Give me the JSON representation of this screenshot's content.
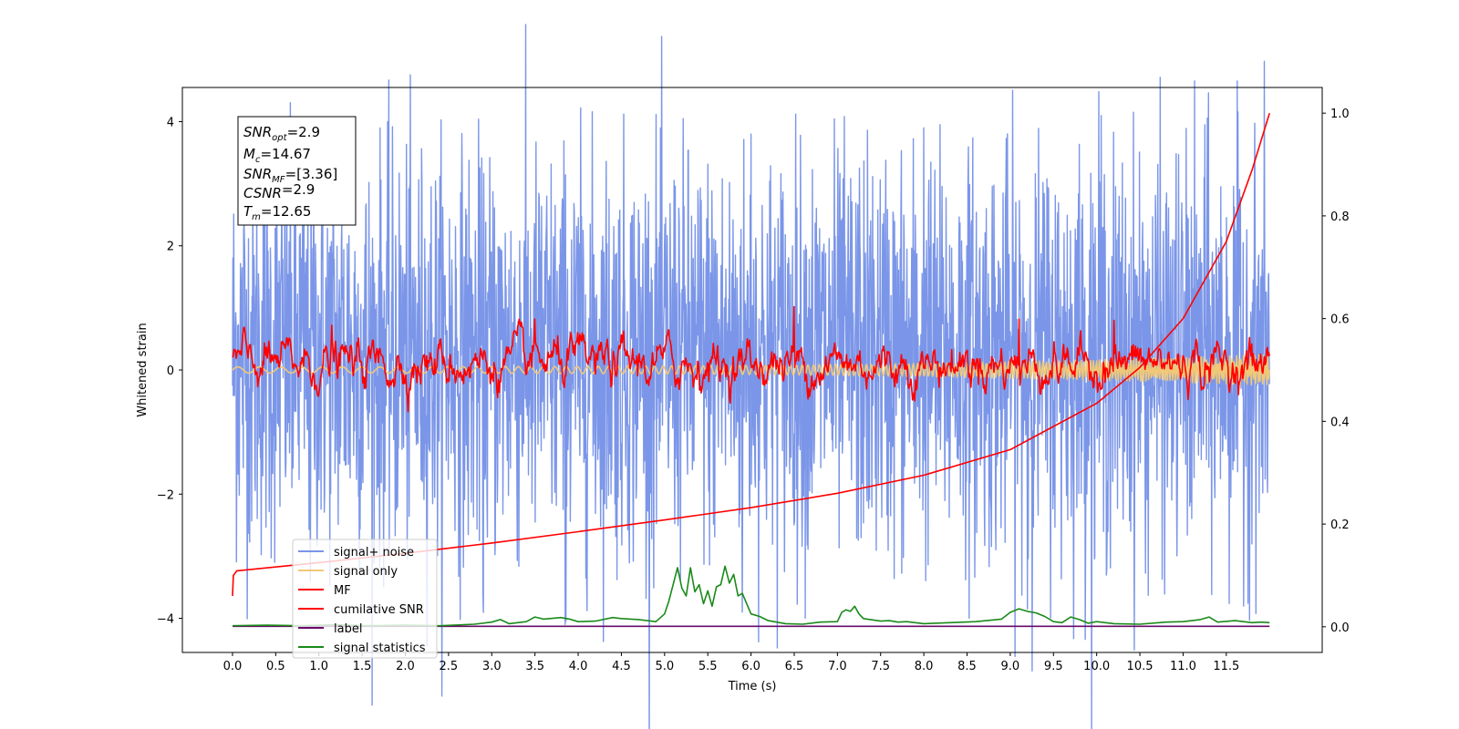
{
  "chart_data": {
    "type": "line",
    "title": "",
    "xlabel": "Time (s)",
    "ylabel": "Whitened strain",
    "xlim": [
      -0.58,
      12.61
    ],
    "ylim": [
      -4.55,
      4.55
    ],
    "y2lim": [
      -0.05,
      1.05
    ],
    "xticks": [
      "0.0",
      "0.5",
      "1.0",
      "1.5",
      "2.0",
      "2.5",
      "3.0",
      "3.5",
      "4.0",
      "4.5",
      "5.0",
      "5.5",
      "6.0",
      "6.5",
      "7.0",
      "7.5",
      "8.0",
      "8.5",
      "9.0",
      "9.5",
      "10.0",
      "10.5",
      "11.0",
      "11.5"
    ],
    "yticks": [
      "−4",
      "−2",
      "0",
      "2",
      "4"
    ],
    "y2ticks": [
      "0.0",
      "0.2",
      "0.4",
      "0.6",
      "0.8",
      "1.0"
    ],
    "grid": false,
    "legend_position": "lower-left",
    "annotation": {
      "lines": [
        {
          "sym": "SNR",
          "sub": "opt",
          "value": "=2.9"
        },
        {
          "sym": "M",
          "sub": "c",
          "value": "=14.67"
        },
        {
          "sym": "SNR",
          "sub": "MF",
          "value": "=[3.36]"
        },
        {
          "sym": "CSNR",
          "sub": "",
          "value": "=2.9"
        },
        {
          "sym": "T",
          "sub": "m",
          "value": "=12.65"
        }
      ]
    },
    "series": [
      {
        "name": "signal+ noise",
        "axis": "left",
        "color": "#7b96e8",
        "kind": "noise",
        "envelope": [
          -2.7,
          3.2
        ],
        "extremes": [
          [
            0.9,
            -3.4
          ],
          [
            2.9,
            -3.6
          ],
          [
            3.85,
            -4.1
          ],
          [
            5.9,
            -3.9
          ],
          [
            9.2,
            -3.85
          ],
          [
            10.05,
            4.1
          ],
          [
            11.25,
            3.95
          ],
          [
            8.0,
            3.9
          ],
          [
            6.0,
            3.8
          ]
        ]
      },
      {
        "name": "signal only",
        "axis": "left",
        "color": "#f0c878",
        "kind": "chirp",
        "amplitude_start": 0.05,
        "amplitude_end": 0.25
      },
      {
        "name": "MF",
        "axis": "left",
        "color": "#ff0000",
        "kind": "noise",
        "envelope": [
          -0.5,
          0.7
        ],
        "extremes": [
          [
            1.15,
            0.72
          ],
          [
            3.5,
            0.82
          ],
          [
            6.5,
            1.02
          ],
          [
            9.1,
            0.82
          ],
          [
            10.2,
            0.8
          ]
        ]
      },
      {
        "name": "cumilative SNR",
        "axis": "right",
        "color": "#ff0000",
        "kind": "curve",
        "x": [
          0.0,
          0.01,
          0.05,
          1.0,
          2.0,
          3.0,
          4.0,
          5.0,
          6.0,
          7.0,
          8.0,
          9.0,
          10.0,
          10.5,
          11.0,
          11.5,
          11.8,
          12.0
        ],
        "y": [
          0.06,
          0.1,
          0.109,
          0.125,
          0.143,
          0.163,
          0.185,
          0.208,
          0.232,
          0.26,
          0.295,
          0.345,
          0.435,
          0.505,
          0.6,
          0.75,
          0.89,
          1.0
        ]
      },
      {
        "name": "label",
        "axis": "right",
        "color": "#6a0a6a",
        "kind": "curve",
        "x": [
          0.0,
          12.0
        ],
        "y": [
          0.001,
          0.001
        ]
      },
      {
        "name": "signal statistics",
        "axis": "right",
        "color": "#1a8a1a",
        "kind": "curve",
        "x": [
          0.0,
          0.4,
          0.8,
          1.2,
          1.6,
          2.0,
          2.4,
          2.8,
          3.0,
          3.1,
          3.2,
          3.4,
          3.5,
          3.6,
          3.8,
          3.9,
          4.0,
          4.2,
          4.4,
          4.5,
          4.7,
          4.9,
          5.0,
          5.05,
          5.15,
          5.2,
          5.25,
          5.3,
          5.35,
          5.4,
          5.45,
          5.5,
          5.55,
          5.6,
          5.65,
          5.7,
          5.75,
          5.8,
          5.85,
          5.9,
          6.0,
          6.1,
          6.2,
          6.4,
          6.6,
          6.8,
          7.0,
          7.05,
          7.1,
          7.15,
          7.2,
          7.25,
          7.3,
          7.5,
          7.6,
          7.7,
          7.8,
          8.0,
          8.3,
          8.6,
          8.9,
          9.0,
          9.1,
          9.2,
          9.3,
          9.4,
          9.5,
          9.6,
          9.7,
          9.8,
          9.9,
          10.0,
          10.2,
          10.5,
          10.8,
          11.0,
          11.2,
          11.3,
          11.4,
          11.6,
          11.8,
          11.9,
          12.0
        ],
        "y": [
          0.002,
          0.003,
          0.002,
          0.004,
          0.002,
          0.003,
          0.002,
          0.005,
          0.009,
          0.014,
          0.006,
          0.01,
          0.019,
          0.015,
          0.018,
          0.015,
          0.01,
          0.011,
          0.018,
          0.016,
          0.014,
          0.01,
          0.025,
          0.05,
          0.115,
          0.075,
          0.06,
          0.115,
          0.068,
          0.082,
          0.045,
          0.07,
          0.04,
          0.078,
          0.082,
          0.118,
          0.085,
          0.102,
          0.06,
          0.065,
          0.025,
          0.02,
          0.012,
          0.006,
          0.005,
          0.009,
          0.01,
          0.028,
          0.033,
          0.03,
          0.04,
          0.025,
          0.016,
          0.011,
          0.012,
          0.009,
          0.01,
          0.006,
          0.008,
          0.01,
          0.015,
          0.028,
          0.035,
          0.03,
          0.027,
          0.02,
          0.01,
          0.008,
          0.019,
          0.014,
          0.007,
          0.01,
          0.006,
          0.005,
          0.009,
          0.01,
          0.014,
          0.019,
          0.009,
          0.012,
          0.008,
          0.009,
          0.008
        ]
      }
    ]
  }
}
